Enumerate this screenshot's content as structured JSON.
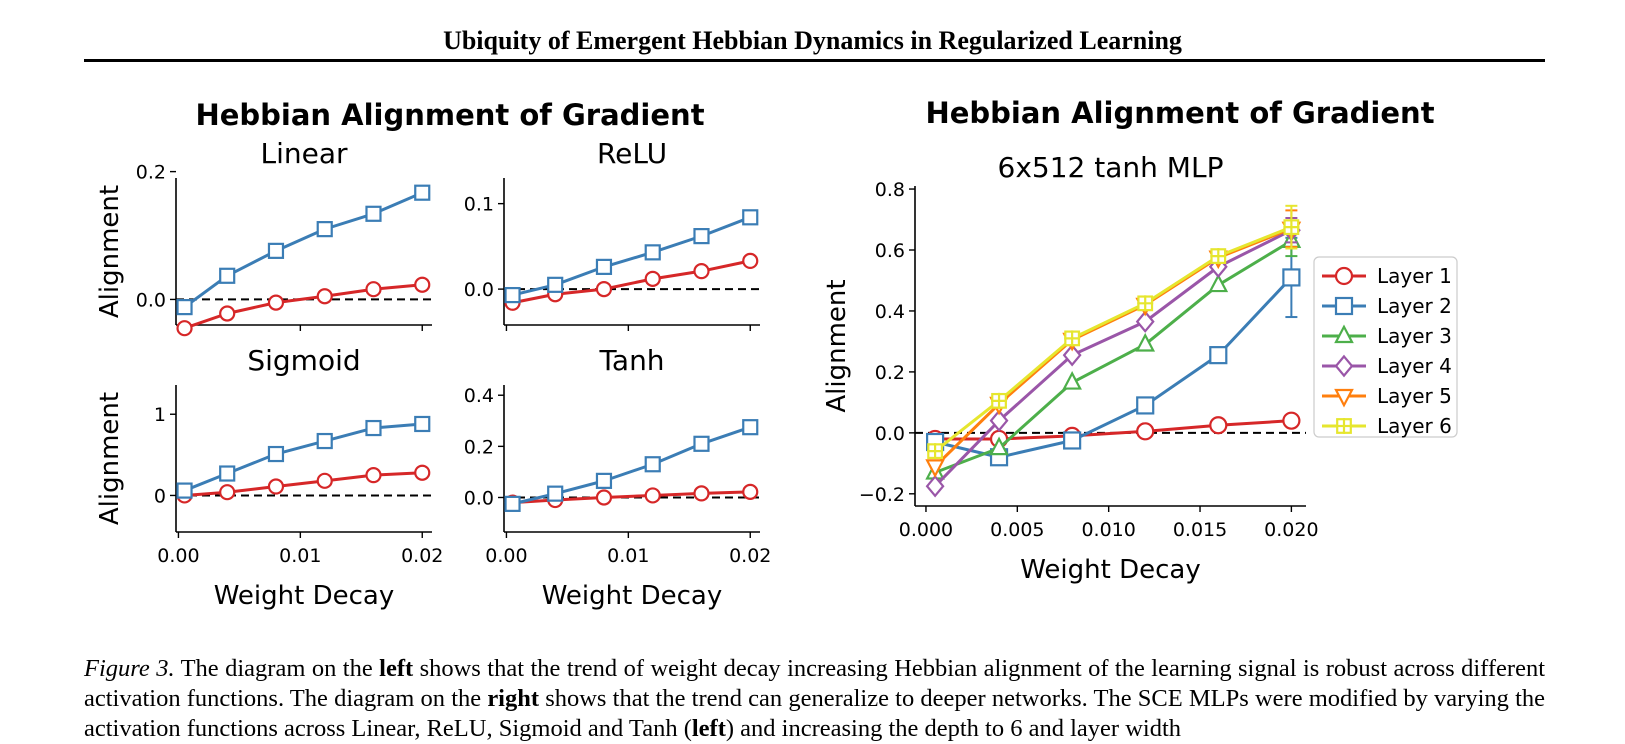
{
  "header": {
    "title": "Ubiquity of Emergent Hebbian Dynamics in Regularized Learning"
  },
  "left_panel": {
    "title": "Hebbian Alignment of Gradient"
  },
  "right_panel": {
    "title": "Hebbian Alignment of Gradient"
  },
  "colors": {
    "red": "#d62728",
    "blue": "#3b7db5",
    "green": "#4daf4a",
    "purple": "#9a56a8",
    "orange": "#ff7f0e",
    "yellow": "#e6e62e"
  },
  "chart_data": [
    {
      "type": "line",
      "title": "Linear",
      "xlabel": "",
      "ylabel": "Alignment",
      "x": [
        0.0005,
        0.004,
        0.008,
        0.012,
        0.016,
        0.02
      ],
      "xlim": [
        -0.0002,
        0.0208
      ],
      "ylim": [
        -0.04,
        0.19
      ],
      "yticks": [
        {
          "v": 0.0,
          "label": "0.0"
        },
        {
          "v": 0.2,
          "label": "0.2"
        }
      ],
      "xticks": [],
      "zero_line": true,
      "series": [
        {
          "values": [
            -0.045,
            -0.022,
            -0.005,
            0.005,
            0.016,
            0.023
          ],
          "marker": "circle",
          "color": "#d62728"
        },
        {
          "values": [
            -0.012,
            0.037,
            0.076,
            0.11,
            0.134,
            0.167
          ],
          "marker": "square",
          "color": "#3b7db5"
        }
      ]
    },
    {
      "type": "line",
      "title": "ReLU",
      "xlabel": "",
      "ylabel": "",
      "x": [
        0.0005,
        0.004,
        0.008,
        0.012,
        0.016,
        0.02
      ],
      "xlim": [
        -0.0002,
        0.0208
      ],
      "ylim": [
        -0.042,
        0.13
      ],
      "yticks": [
        {
          "v": 0.0,
          "label": "0.0"
        },
        {
          "v": 0.1,
          "label": "0.1"
        }
      ],
      "xticks": [],
      "zero_line": true,
      "series": [
        {
          "values": [
            -0.016,
            -0.006,
            0.0,
            0.012,
            0.021,
            0.033
          ],
          "marker": "circle",
          "color": "#d62728"
        },
        {
          "values": [
            -0.007,
            0.005,
            0.026,
            0.043,
            0.062,
            0.084
          ],
          "marker": "square",
          "color": "#3b7db5"
        }
      ]
    },
    {
      "type": "line",
      "title": "Sigmoid",
      "xlabel": "Weight Decay",
      "ylabel": "Alignment",
      "x": [
        0.0005,
        0.004,
        0.008,
        0.012,
        0.016,
        0.02
      ],
      "xlim": [
        -0.0002,
        0.0208
      ],
      "ylim": [
        -0.45,
        1.36
      ],
      "yticks": [
        {
          "v": 0,
          "label": "0"
        },
        {
          "v": 1,
          "label": "1"
        }
      ],
      "xticks": [
        {
          "v": 0.0,
          "label": "0.00"
        },
        {
          "v": 0.01,
          "label": "0.01"
        },
        {
          "v": 0.02,
          "label": "0.02"
        }
      ],
      "zero_line": true,
      "series": [
        {
          "values": [
            0.0,
            0.04,
            0.11,
            0.18,
            0.25,
            0.28
          ],
          "marker": "circle",
          "color": "#d62728"
        },
        {
          "values": [
            0.06,
            0.27,
            0.51,
            0.67,
            0.83,
            0.88
          ],
          "marker": "square",
          "color": "#3b7db5"
        }
      ]
    },
    {
      "type": "line",
      "title": "Tanh",
      "xlabel": "Weight Decay",
      "ylabel": "",
      "x": [
        0.0005,
        0.004,
        0.008,
        0.012,
        0.016,
        0.02
      ],
      "xlim": [
        -0.0002,
        0.0208
      ],
      "ylim": [
        -0.135,
        0.44
      ],
      "yticks": [
        {
          "v": 0.0,
          "label": "0.0"
        },
        {
          "v": 0.2,
          "label": "0.2"
        },
        {
          "v": 0.4,
          "label": "0.4"
        }
      ],
      "xticks": [
        {
          "v": 0.0,
          "label": "0.00"
        },
        {
          "v": 0.01,
          "label": "0.01"
        },
        {
          "v": 0.02,
          "label": "0.02"
        }
      ],
      "zero_line": true,
      "series": [
        {
          "values": [
            -0.02,
            -0.01,
            0.0,
            0.008,
            0.016,
            0.022
          ],
          "marker": "circle",
          "color": "#d62728"
        },
        {
          "values": [
            -0.025,
            0.015,
            0.065,
            0.13,
            0.21,
            0.275
          ],
          "marker": "square",
          "color": "#3b7db5"
        }
      ]
    },
    {
      "type": "line",
      "title": "6x512 tanh MLP",
      "xlabel": "Weight Decay",
      "ylabel": "Alignment",
      "x": [
        0.0005,
        0.004,
        0.008,
        0.012,
        0.016,
        0.02
      ],
      "xlim": [
        -0.0006,
        0.0208
      ],
      "ylim": [
        -0.24,
        0.81
      ],
      "yticks": [
        {
          "v": -0.2,
          "label": "−0.2"
        },
        {
          "v": 0.0,
          "label": "0.0"
        },
        {
          "v": 0.2,
          "label": "0.2"
        },
        {
          "v": 0.4,
          "label": "0.4"
        },
        {
          "v": 0.6,
          "label": "0.6"
        },
        {
          "v": 0.8,
          "label": "0.8"
        }
      ],
      "xticks": [
        {
          "v": 0.0,
          "label": "0.000"
        },
        {
          "v": 0.005,
          "label": "0.005"
        },
        {
          "v": 0.01,
          "label": "0.010"
        },
        {
          "v": 0.015,
          "label": "0.015"
        },
        {
          "v": 0.02,
          "label": "0.020"
        }
      ],
      "zero_line": true,
      "legend_position": "right",
      "series": [
        {
          "name": "Layer 1",
          "values": [
            -0.02,
            -0.02,
            -0.01,
            0.005,
            0.025,
            0.04
          ],
          "marker": "circle",
          "color": "#d62728",
          "err": [
            0,
            0,
            0,
            0,
            0,
            0
          ]
        },
        {
          "name": "Layer 2",
          "values": [
            -0.03,
            -0.08,
            -0.025,
            0.09,
            0.255,
            0.51
          ],
          "marker": "square",
          "color": "#3b7db5",
          "err": [
            0,
            0,
            0,
            0,
            0,
            0.13
          ]
        },
        {
          "name": "Layer 3",
          "values": [
            -0.13,
            -0.05,
            0.165,
            0.29,
            0.485,
            0.63
          ],
          "marker": "triangle-up",
          "color": "#4daf4a",
          "err": [
            0,
            0,
            0,
            0,
            0,
            0.05
          ]
        },
        {
          "name": "Layer 4",
          "values": [
            -0.175,
            0.04,
            0.255,
            0.365,
            0.545,
            0.665
          ],
          "marker": "diamond",
          "color": "#9a56a8",
          "err": [
            0,
            0,
            0,
            0,
            0,
            0.04
          ]
        },
        {
          "name": "Layer 5",
          "values": [
            -0.11,
            0.095,
            0.305,
            0.42,
            0.575,
            0.67
          ],
          "marker": "triangle-down",
          "color": "#ff7f0e",
          "err": [
            0,
            0,
            0,
            0,
            0,
            0.06
          ]
        },
        {
          "name": "Layer 6",
          "values": [
            -0.06,
            0.105,
            0.31,
            0.425,
            0.58,
            0.675
          ],
          "marker": "plus-square",
          "color": "#e6e62e",
          "err": [
            0,
            0,
            0,
            0,
            0,
            0.07
          ]
        }
      ]
    }
  ],
  "caption": {
    "label": "Figure 3.",
    "t1": " The diagram on the ",
    "b1": "left",
    "t2": " shows that the trend of weight decay increasing Hebbian alignment of the learning signal is robust across different activation functions. The diagram on the ",
    "b2": "right",
    "t3": " shows that the trend can generalize to deeper networks. The SCE MLPs were modified by varying the activation functions across Linear, ReLU, Sigmoid and Tanh (",
    "b3": "left",
    "t4": ") and increasing the depth to 6 and layer width"
  }
}
